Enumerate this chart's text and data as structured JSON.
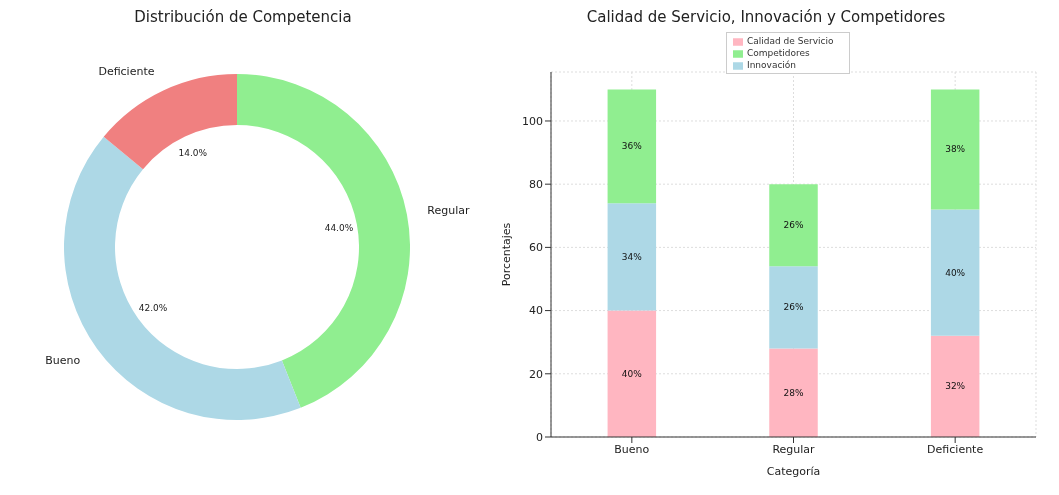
{
  "chart_data": [
    {
      "type": "donut",
      "title": "Distribución de Competencia",
      "categories": [
        "Regular",
        "Bueno",
        "Deficiente"
      ],
      "values": [
        44,
        42,
        14
      ],
      "colors": [
        "#90ee90",
        "#add8e6",
        "#f08080"
      ],
      "value_labels": [
        "44.0%",
        "42.0%",
        "14.0%"
      ]
    },
    {
      "type": "bar",
      "title": "Calidad de Servicio, Innovación y Competidores",
      "xlabel": "Categoría",
      "ylabel": "Porcentajes",
      "categories": [
        "Bueno",
        "Regular",
        "Deficiente"
      ],
      "stacked": true,
      "series": [
        {
          "name": "Calidad de Servicio",
          "color": "#ffb6c1",
          "values": [
            40,
            28,
            32
          ],
          "value_labels": [
            "40%",
            "28%",
            "32%"
          ]
        },
        {
          "name": "Innovación",
          "color": "#add8e6",
          "values": [
            34,
            26,
            40
          ],
          "value_labels": [
            "34%",
            "26%",
            "40%"
          ]
        },
        {
          "name": "Competidores",
          "color": "#90ee90",
          "values": [
            36,
            26,
            38
          ],
          "value_labels": [
            "36%",
            "26%",
            "38%"
          ]
        }
      ],
      "ylim": [
        0,
        115.5
      ],
      "yticks": [
        0,
        20,
        40,
        60,
        80,
        100
      ],
      "grid": true,
      "legend": "top"
    }
  ]
}
